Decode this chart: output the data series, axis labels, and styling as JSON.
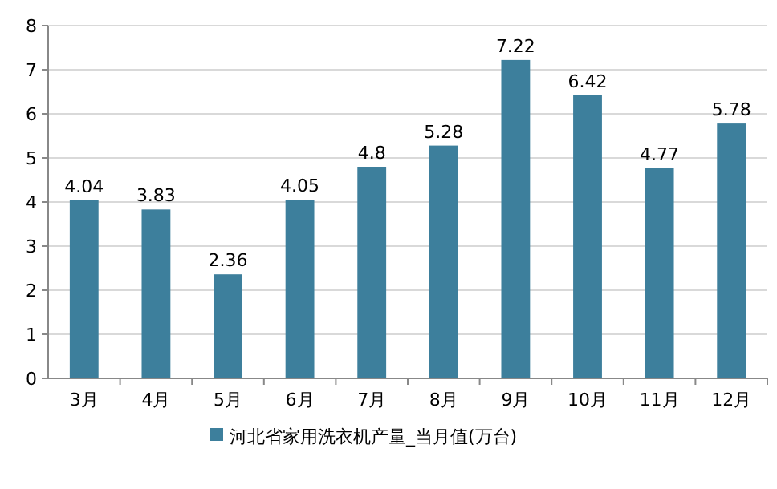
{
  "chart_data": {
    "type": "bar",
    "categories": [
      "3月",
      "4月",
      "5月",
      "6月",
      "7月",
      "8月",
      "9月",
      "10月",
      "11月",
      "12月"
    ],
    "series": [
      {
        "name": "河北省家用洗衣机产量_当月值(万台)",
        "color": "#3d7f9c",
        "values": [
          4.04,
          3.83,
          2.36,
          4.05,
          4.8,
          5.28,
          7.22,
          6.42,
          4.77,
          5.78
        ]
      }
    ],
    "ylim": [
      0,
      8
    ],
    "yticks": [
      0,
      1,
      2,
      3,
      4,
      5,
      6,
      7,
      8
    ],
    "grid": "y",
    "legend": "bottom",
    "data_labels": true
  }
}
